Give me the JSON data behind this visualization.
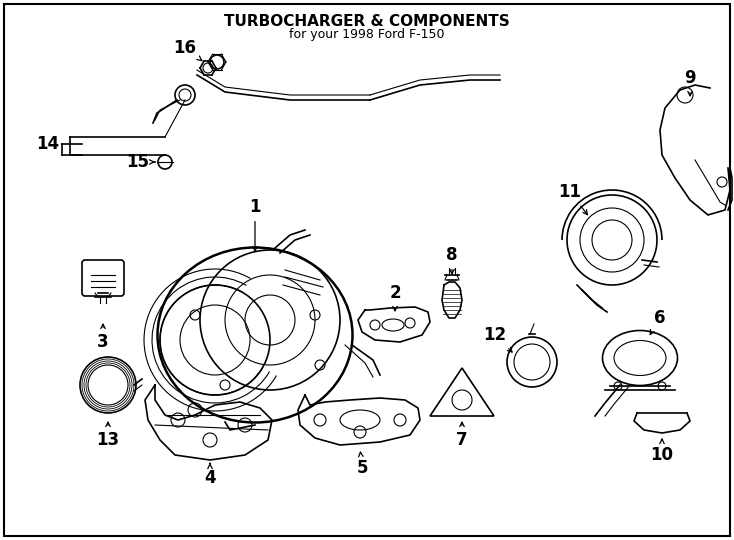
{
  "title": "TURBOCHARGER & COMPONENTS",
  "subtitle": "for your 1998 Ford F-150",
  "bg": "#ffffff",
  "lc": "#000000",
  "fig_width": 7.34,
  "fig_height": 5.4,
  "dpi": 100
}
